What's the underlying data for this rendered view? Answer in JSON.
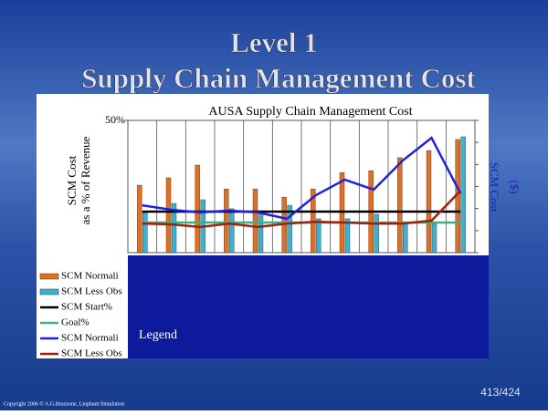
{
  "slide_title": [
    "Level 1",
    "Supply Chain Management Cost"
  ],
  "chart_data": {
    "type": "bar",
    "title": "AUSA Supply Chain Management Cost",
    "y_label": [
      "SCM Cost",
      "as a % of Revenue"
    ],
    "y2_label": [
      "SCM Cost",
      "($)"
    ],
    "categories": [
      null,
      null,
      null,
      null,
      null,
      null,
      null,
      null,
      null,
      null,
      null,
      null
    ],
    "ylim": [
      0,
      50
    ],
    "yticks": [
      {
        "value": 50,
        "label": "50%"
      }
    ],
    "series": [
      {
        "name": "SCM Normali",
        "type": "bar",
        "color": "#e07020",
        "values": [
          25.5,
          28.3,
          33.1,
          24.1,
          24.1,
          21.0,
          24.1,
          30.3,
          31.0,
          35.9,
          38.6,
          42.8
        ]
      },
      {
        "name": "SCM Less Obs",
        "type": "bar",
        "color": "#40b0d0",
        "values": [
          15.2,
          18.6,
          20.0,
          16.6,
          15.2,
          17.9,
          12.8,
          12.8,
          14.5,
          11.0,
          11.0,
          43.8
        ]
      },
      {
        "name": "SCM Start%",
        "type": "line",
        "color": "#000000",
        "values": [
          15.5,
          15.5,
          15.5,
          15.5,
          15.5,
          15.5,
          15.5,
          15.5,
          15.5,
          15.5,
          15.5,
          15.5
        ]
      },
      {
        "name": "Goal%",
        "type": "line",
        "color": "#40b080",
        "values": [
          11.4,
          11.4,
          11.4,
          11.4,
          11.4,
          11.4,
          11.4,
          11.4,
          11.4,
          11.4,
          11.4,
          11.4
        ]
      },
      {
        "name": "SCM Normali",
        "type": "line",
        "color": "#2020e0",
        "values": [
          17.9,
          16.2,
          15.2,
          15.9,
          15.2,
          12.8,
          21.7,
          27.6,
          23.8,
          34.8,
          43.4,
          22.4
        ]
      },
      {
        "name": "SCM Less Obs",
        "type": "line",
        "color": "#a02010",
        "values": [
          11.0,
          10.7,
          9.7,
          11.0,
          9.7,
          11.0,
          11.7,
          11.4,
          11.0,
          11.0,
          12.1,
          23.4
        ]
      }
    ],
    "legend_box": "Legend"
  },
  "page_number": "413/424",
  "copyright": "Copyright 2006 © A.G.Bruzzone, Liophant Simulation"
}
